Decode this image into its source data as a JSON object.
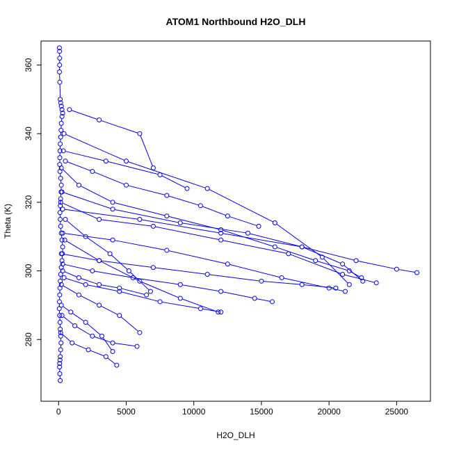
{
  "chart_data": {
    "type": "line",
    "title": "ATOM1 Northbound H2O_DLH",
    "xlabel": "H2O_DLH",
    "ylabel": "Theta (K)",
    "xlim": [
      -1300,
      27500
    ],
    "ylim": [
      262,
      367
    ],
    "xticks": [
      0,
      5000,
      10000,
      15000,
      20000,
      25000
    ],
    "yticks": [
      280,
      300,
      320,
      340,
      360
    ],
    "grid": false,
    "color": "#0000ff",
    "marker": "open-circle",
    "series": [
      {
        "x": [
          60,
          70,
          80,
          75,
          65,
          90,
          120,
          150,
          200,
          250,
          300,
          250,
          200,
          180,
          150,
          120,
          100,
          90,
          80,
          100,
          150,
          200,
          180,
          150,
          120,
          100,
          120,
          150,
          200,
          250,
          300,
          280,
          250,
          200,
          150,
          120,
          100,
          80,
          60,
          50,
          80,
          100,
          120,
          150,
          180,
          150,
          120,
          100,
          80,
          70,
          90,
          120
        ],
        "y": [
          365,
          364,
          362,
          360,
          358,
          355,
          350,
          349,
          348,
          347,
          346,
          345,
          343,
          341,
          339,
          337,
          335,
          333,
          331,
          329,
          327,
          325,
          323,
          321,
          319,
          317,
          315,
          313,
          311,
          309,
          307,
          305,
          303,
          301,
          299,
          297,
          295,
          293,
          291,
          289,
          287,
          285,
          283,
          281,
          279,
          277,
          275,
          274,
          273,
          272,
          270,
          268
        ]
      },
      {
        "x": [
          200,
          1500,
          4000,
          8000,
          12000,
          16000,
          19000,
          21500,
          22400
        ],
        "y": [
          330,
          325,
          320,
          316,
          312,
          307,
          303,
          300,
          298
        ]
      },
      {
        "x": [
          150,
          3000,
          7000,
          12000,
          17000,
          21000,
          23500
        ],
        "y": [
          320,
          315,
          313,
          309,
          305,
          299,
          296.5
        ]
      },
      {
        "x": [
          250,
          4000,
          9000,
          14000,
          18000,
          21000,
          22500
        ],
        "y": [
          323,
          318,
          314,
          311,
          307,
          302,
          297
        ]
      },
      {
        "x": [
          300,
          6000,
          12000,
          18000,
          22000,
          25000,
          26500
        ],
        "y": [
          318,
          315,
          311,
          307,
          303,
          300.5,
          299.5
        ]
      },
      {
        "x": [
          400,
          5000,
          11000,
          16000,
          19500,
          21500
        ],
        "y": [
          340,
          332,
          324,
          314,
          304,
          296
        ]
      },
      {
        "x": [
          500,
          2500,
          5000,
          8000,
          10500,
          12500,
          14800
        ],
        "y": [
          332,
          329,
          325,
          322,
          319,
          316,
          313
        ]
      },
      {
        "x": [
          300,
          4000,
          8000,
          12500,
          16500,
          20000,
          21200
        ],
        "y": [
          311,
          309,
          306,
          302,
          298,
          295,
          294
        ]
      },
      {
        "x": [
          200,
          3000,
          7000,
          11000,
          15000,
          18000,
          20500
        ],
        "y": [
          305,
          303,
          301,
          299,
          297,
          296,
          295
        ]
      },
      {
        "x": [
          400,
          2000,
          4500,
          7500,
          10500,
          12000
        ],
        "y": [
          298,
          296,
          294,
          291,
          289,
          288
        ]
      },
      {
        "x": [
          300,
          2500,
          5500,
          9000,
          12000,
          14500,
          15800
        ],
        "y": [
          302,
          300,
          298,
          296,
          294,
          292,
          291
        ]
      },
      {
        "x": [
          800,
          3000,
          6000,
          7000
        ],
        "y": [
          347,
          344,
          340,
          330
        ]
      },
      {
        "x": [
          200,
          1500,
          3000,
          4500,
          6000
        ],
        "y": [
          296,
          293,
          290,
          287,
          282
        ]
      },
      {
        "x": [
          250,
          1200,
          2500,
          4000,
          5800
        ],
        "y": [
          287,
          284,
          281,
          279,
          278
        ]
      },
      {
        "x": [
          150,
          1000,
          2200,
          3500,
          4300
        ],
        "y": [
          282,
          279,
          277,
          275,
          272.5
        ]
      },
      {
        "x": [
          300,
          1500,
          3000,
          4500,
          6500
        ],
        "y": [
          300,
          298,
          296,
          295,
          293
        ]
      },
      {
        "x": [
          500,
          2000,
          3800,
          5200,
          6800
        ],
        "y": [
          315,
          310,
          305,
          300,
          294
        ]
      },
      {
        "x": [
          200,
          900,
          2000,
          3200,
          4000
        ],
        "y": [
          290,
          288,
          285,
          281,
          276.5
        ]
      },
      {
        "x": [
          350,
          3500,
          7500,
          9500
        ],
        "y": [
          335,
          332,
          328,
          324
        ]
      },
      {
        "x": [
          450,
          3000,
          6000,
          9000,
          11800
        ],
        "y": [
          309,
          303,
          297,
          292,
          288
        ]
      }
    ]
  }
}
